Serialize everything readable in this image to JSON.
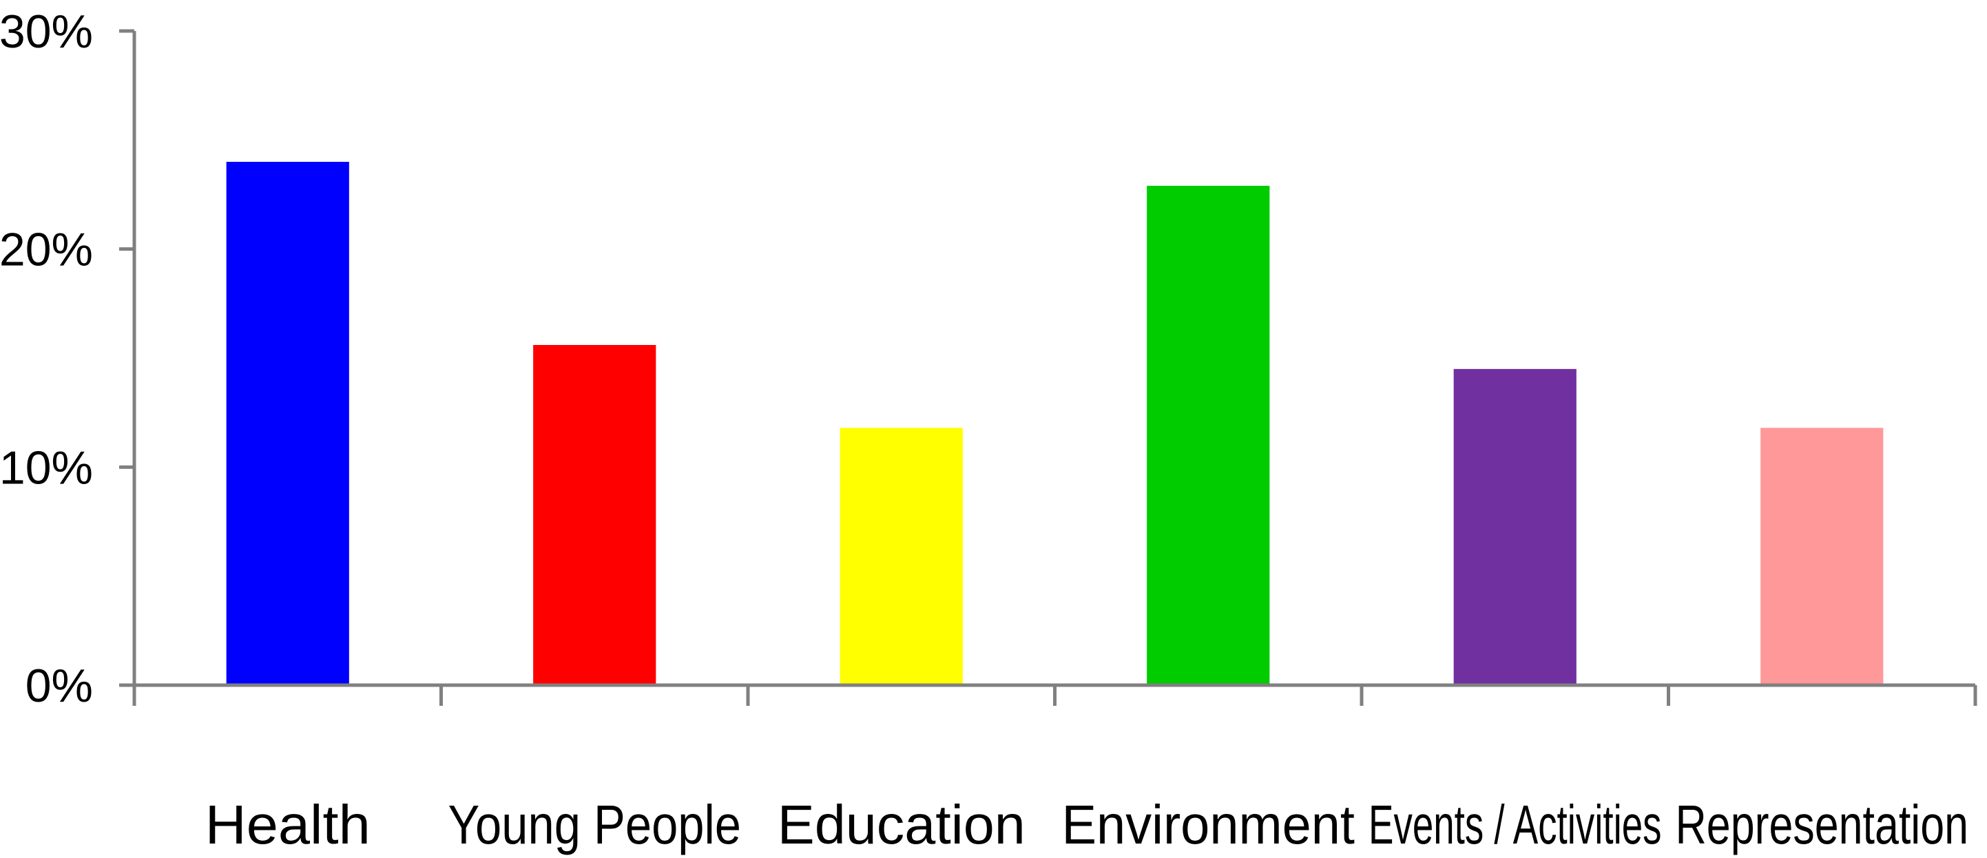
{
  "chart_data": {
    "type": "bar",
    "title": "",
    "xlabel": "",
    "ylabel": "",
    "categories": [
      "Health",
      "Young People",
      "Education",
      "Environment",
      "Events / Activities",
      "Representation"
    ],
    "values": [
      24,
      15.6,
      11.8,
      22.9,
      14.5,
      11.8
    ],
    "bar_colors": [
      "#0000ff",
      "#ff0000",
      "#ffff00",
      "#00cc00",
      "#7030a0",
      "#ff9999"
    ],
    "ylim": [
      0,
      30
    ],
    "y_ticks": [
      0,
      10,
      20,
      30
    ],
    "y_tick_labels": [
      "0%",
      "10%",
      "20%",
      "30%"
    ],
    "grid": false,
    "legend": "none",
    "axis_color": "#808080"
  }
}
